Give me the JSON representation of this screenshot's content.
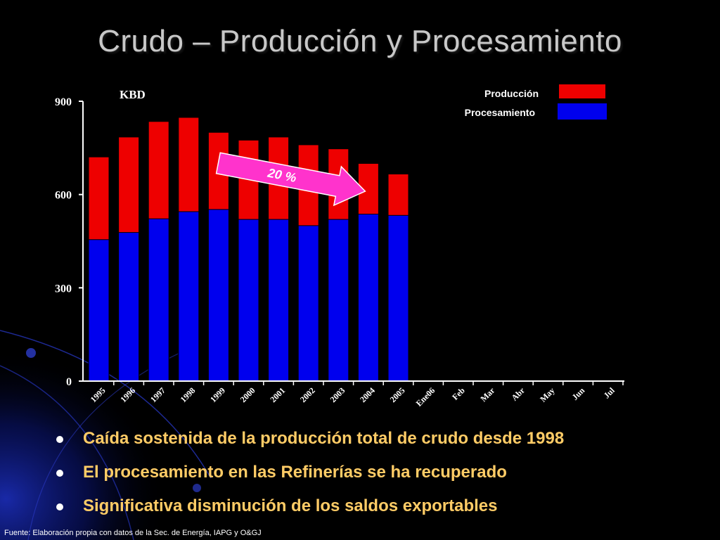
{
  "title": "Crudo – Producción y Procesamiento",
  "chart_data": {
    "type": "bar",
    "unit_label": "KBD",
    "categories": [
      "1995",
      "1996",
      "1997",
      "1998",
      "1999",
      "2000",
      "2001",
      "2002",
      "2003",
      "2004",
      "2005",
      "Ene06",
      "Feb",
      "Mar",
      "Abr",
      "May",
      "Jun",
      "Jul"
    ],
    "series": [
      {
        "name": "Producción",
        "color": "#ee0000",
        "values": [
          721,
          785,
          835,
          848,
          800,
          775,
          785,
          760,
          747,
          700,
          666,
          null,
          null,
          null,
          null,
          null,
          null,
          null
        ]
      },
      {
        "name": "Procesamiento",
        "color": "#0000ee",
        "values": [
          455,
          478,
          522,
          545,
          552,
          520,
          520,
          500,
          520,
          537,
          533,
          null,
          null,
          null,
          null,
          null,
          null,
          null
        ]
      }
    ],
    "ylim": [
      0,
      900
    ],
    "yticks": [
      0,
      300,
      600,
      900
    ],
    "legend_position": "top-right",
    "annotation": {
      "text": "20 %",
      "from_category": "1999",
      "to_category": "2004"
    }
  },
  "bullets": [
    "Caída sostenida de la producción total de crudo desde 1998",
    "El procesamiento en las Refinerías se ha recuperado",
    "Significativa disminución de los saldos exportables"
  ],
  "source": "Fuente: Elaboración propia con datos de la Sec. de Energía, IAPG y O&GJ"
}
